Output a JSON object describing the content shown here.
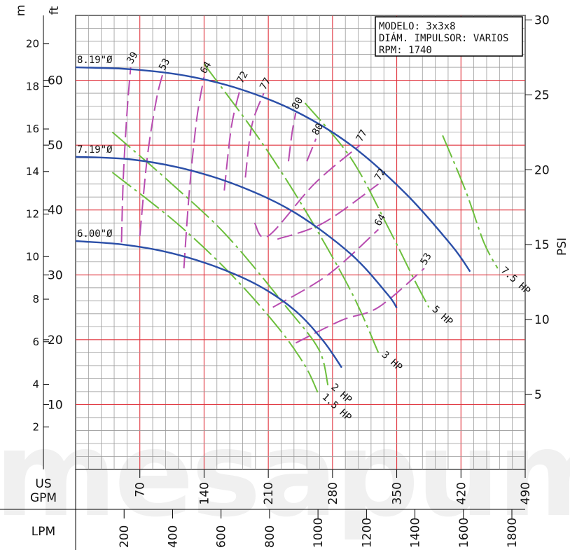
{
  "chart_data": {
    "type": "line",
    "info_box": [
      "MODELO: 3x3x8",
      "DIÁM. IMPULSOR: VARIOS",
      "RPM: 1740"
    ],
    "axis_units": {
      "meters": "m",
      "feet": "ft",
      "psi": "PSI",
      "gpm": "US GPM",
      "lpm": "LPM"
    },
    "x_gpm_ticks": [
      "70",
      "140",
      "210",
      "280",
      "350",
      "420",
      "490"
    ],
    "x_lpm_ticks": [
      "200",
      "400",
      "600",
      "800",
      "1000",
      "1200",
      "1400",
      "1600",
      "1800"
    ],
    "y_m_ticks": [
      "2",
      "4",
      "6",
      "8",
      "10",
      "12",
      "14",
      "16",
      "18",
      "20"
    ],
    "y_ft_ticks": [
      "10",
      "20",
      "30",
      "40",
      "50",
      "60"
    ],
    "y_psi_ticks": [
      "5",
      "10",
      "15",
      "20",
      "25",
      "30"
    ],
    "xlim_gpm": [
      0,
      490
    ],
    "ylim_ft": [
      0,
      70
    ],
    "grid": true,
    "watermark": "mesapum",
    "series": [
      {
        "name": "8.19\"Ø",
        "color": "#2b4fa8",
        "points": [
          [
            0,
            62
          ],
          [
            60,
            61.7
          ],
          [
            120,
            60.7
          ],
          [
            180,
            58.6
          ],
          [
            240,
            55.2
          ],
          [
            300,
            50.0
          ],
          [
            360,
            42.5
          ],
          [
            410,
            34.5
          ],
          [
            430,
            30.5
          ]
        ]
      },
      {
        "name": "7.19\"Ø",
        "color": "#2b4fa8",
        "points": [
          [
            0,
            48.2
          ],
          [
            60,
            47.8
          ],
          [
            120,
            46.3
          ],
          [
            180,
            43.6
          ],
          [
            240,
            39.5
          ],
          [
            300,
            33.2
          ],
          [
            340,
            27.0
          ],
          [
            350,
            24.9
          ]
        ]
      },
      {
        "name": "6.00\"Ø",
        "color": "#2b4fa8",
        "points": [
          [
            0,
            35.2
          ],
          [
            50,
            34.7
          ],
          [
            100,
            33.5
          ],
          [
            150,
            31.4
          ],
          [
            200,
            28.3
          ],
          [
            240,
            24.4
          ],
          [
            270,
            19.8
          ],
          [
            290,
            15.7
          ]
        ]
      }
    ],
    "efficiency_contours": [
      {
        "label": "39",
        "points": [
          [
            50,
            35
          ],
          [
            52,
            45
          ],
          [
            56,
            55
          ],
          [
            60,
            62
          ]
        ]
      },
      {
        "label": "53",
        "points": [
          [
            70,
            36
          ],
          [
            78,
            48
          ],
          [
            88,
            57
          ],
          [
            95,
            61
          ]
        ]
      },
      {
        "label": "64",
        "points": [
          [
            118,
            31
          ],
          [
            124,
            43
          ],
          [
            132,
            54
          ],
          [
            140,
            60.5
          ]
        ]
      },
      {
        "label": "72",
        "points": [
          [
            162,
            43
          ],
          [
            170,
            53
          ],
          [
            180,
            59
          ]
        ]
      },
      {
        "label": "77",
        "points": [
          [
            185,
            45
          ],
          [
            192,
            53
          ],
          [
            205,
            58
          ]
        ]
      },
      {
        "label": "80",
        "points": [
          [
            232,
            47.5
          ],
          [
            236,
            52
          ],
          [
            240,
            55
          ]
        ]
      },
      {
        "label": "80",
        "points": [
          [
            252,
            47.5
          ],
          [
            262,
            51
          ]
        ]
      },
      {
        "label": "77",
        "points": [
          [
            195,
            38
          ],
          [
            210,
            36
          ],
          [
            260,
            44
          ],
          [
            310,
            50
          ]
        ]
      },
      {
        "label": "72",
        "points": [
          [
            220,
            35.5
          ],
          [
            270,
            38
          ],
          [
            330,
            44
          ]
        ]
      },
      {
        "label": "64",
        "points": [
          [
            215,
            25
          ],
          [
            275,
            30
          ],
          [
            330,
            37
          ]
        ]
      },
      {
        "label": "53",
        "points": [
          [
            240,
            19.5
          ],
          [
            290,
            23
          ],
          [
            330,
            25
          ],
          [
            380,
            31
          ]
        ]
      }
    ],
    "power_curves": [
      {
        "label": "1.5 HP",
        "points": [
          [
            40,
            45.8
          ],
          [
            110,
            38
          ],
          [
            170,
            30
          ],
          [
            220,
            22
          ],
          [
            250,
            16
          ],
          [
            265,
            11.5
          ]
        ]
      },
      {
        "label": "2 HP",
        "points": [
          [
            40,
            52
          ],
          [
            105,
            44
          ],
          [
            165,
            36
          ],
          [
            230,
            25
          ],
          [
            265,
            18.5
          ],
          [
            275,
            13
          ]
        ]
      },
      {
        "label": "3 HP",
        "points": [
          [
            140,
            62.5
          ],
          [
            200,
            51
          ],
          [
            250,
            40
          ],
          [
            300,
            27.5
          ],
          [
            330,
            18
          ]
        ]
      },
      {
        "label": "5 HP",
        "points": [
          [
            250,
            56.5
          ],
          [
            300,
            48
          ],
          [
            340,
            37.5
          ],
          [
            370,
            29
          ],
          [
            385,
            25
          ]
        ]
      },
      {
        "label": "7.5 HP",
        "points": [
          [
            400,
            51.5
          ],
          [
            425,
            43
          ],
          [
            445,
            35
          ],
          [
            460,
            31
          ]
        ]
      }
    ]
  }
}
